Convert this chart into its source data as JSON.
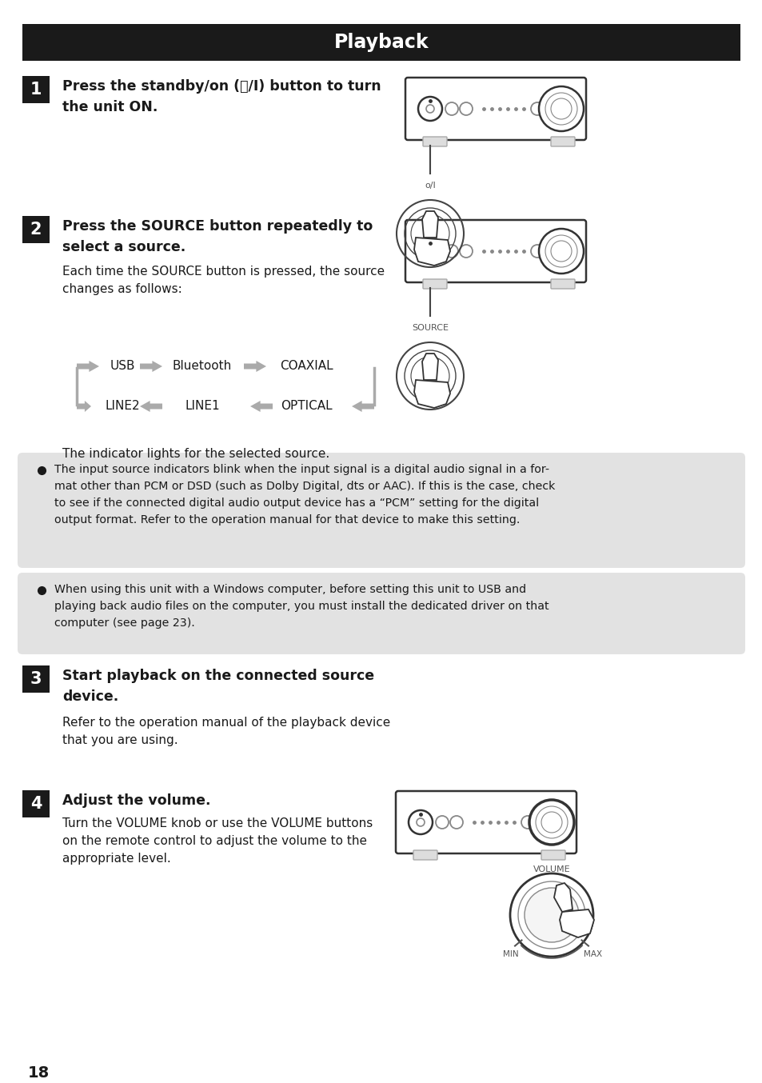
{
  "title": "Playback",
  "title_bg": "#1a1a1a",
  "title_color": "#ffffff",
  "page_bg": "#ffffff",
  "page_number": "18",
  "step1_line1": "Press the standby/on (⏻/I) button to turn",
  "step1_line2": "the unit ON.",
  "step2_line1": "Press the SOURCE button repeatedly to",
  "step2_line2": "select a source.",
  "step2_body1": "Each time the SOURCE button is pressed, the source",
  "step2_body2": "changes as follows:",
  "step2_indicator": "The indicator lights for the selected source.",
  "note1_line1": "The input source indicators blink when the input signal is a digital audio signal in a for-",
  "note1_line2": "mat other than PCM or DSD (such as Dolby Digital, dts or AAC). If this is the case, check",
  "note1_line3": "to see if the connected digital audio output device has a “PCM” setting for the digital",
  "note1_line4": "output format. Refer to the operation manual for that device to make this setting.",
  "note2_line1": "When using this unit with a Windows computer, before setting this unit to USB and",
  "note2_line2": "playing back audio files on the computer, you must install the dedicated driver on that",
  "note2_line3": "computer (see page 23).",
  "step3_line1": "Start playback on the connected source",
  "step3_line2": "device.",
  "step3_body1": "Refer to the operation manual of the playback device",
  "step3_body2": "that you are using.",
  "step4_line1": "Adjust the volume.",
  "step4_body1": "Turn the VOLUME knob or use the VOLUME buttons",
  "step4_body2": "on the remote control to adjust the volume to the",
  "step4_body3": "appropriate level.",
  "note_bg": "#e2e2e2",
  "arrow_color": "#aaaaaa",
  "text_color": "#1a1a1a",
  "device_color": "#333333",
  "label_color": "#666666"
}
